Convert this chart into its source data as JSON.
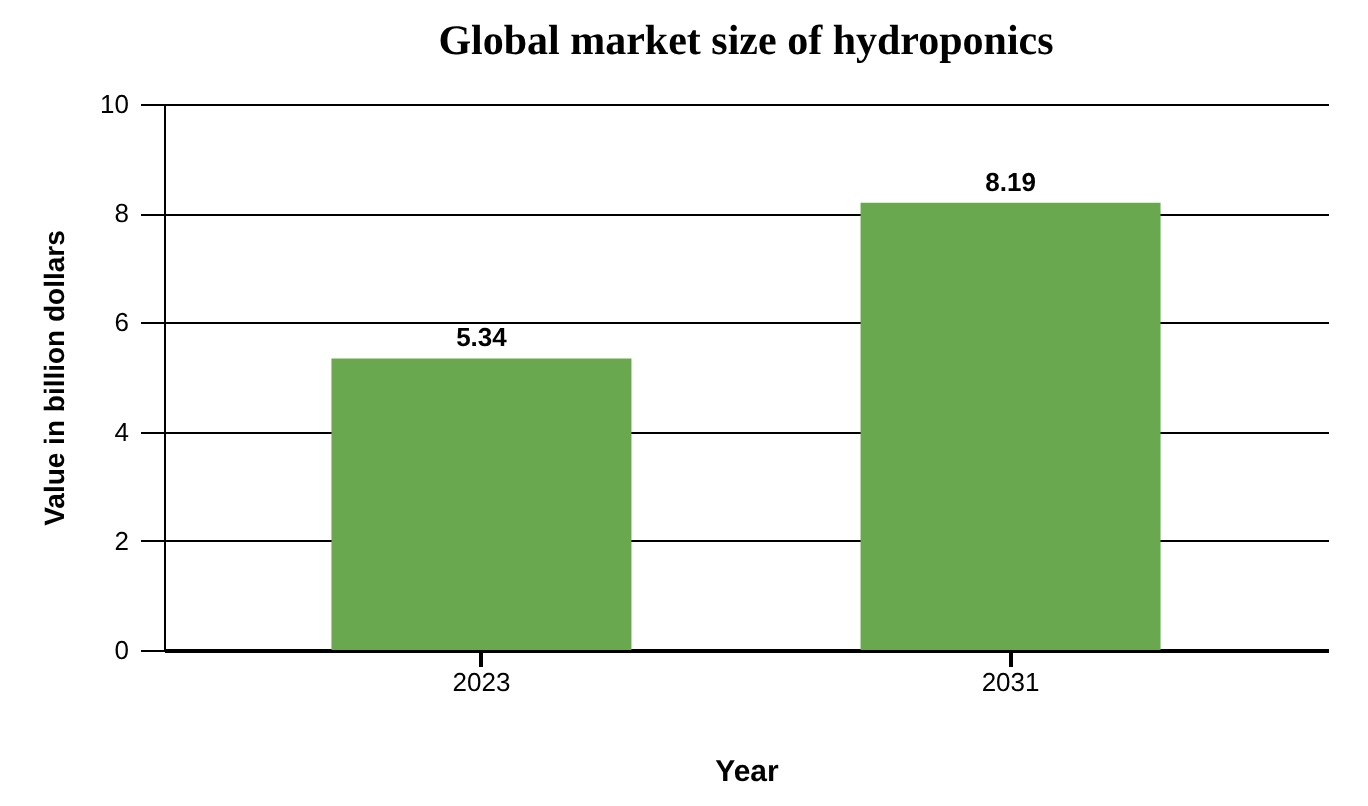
{
  "chart_data": {
    "type": "bar",
    "title": "Global market size of hydroponics",
    "xlabel": "Year",
    "ylabel": "Value in billion dollars",
    "categories": [
      "2023",
      "2031"
    ],
    "values": [
      5.34,
      8.19
    ],
    "color": "#6aa84f",
    "ylim": [
      0,
      10
    ],
    "yticks": [
      0,
      2,
      4,
      6,
      8,
      10
    ],
    "grid": "y",
    "data_labels": true
  }
}
